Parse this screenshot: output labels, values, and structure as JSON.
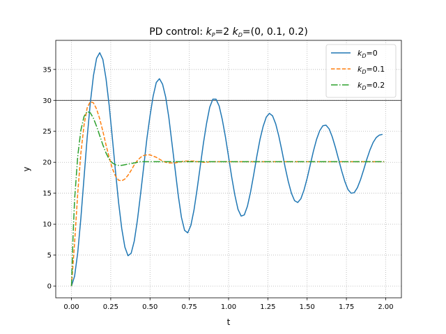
{
  "chart_data": {
    "type": "line",
    "title": {
      "prefix": "PD control: ",
      "kp_sym": "k",
      "kp_sub": "P",
      "kp_val": "=2  ",
      "kd_sym": "k",
      "kd_sub": "D",
      "kd_val": "=(0, 0.1, 0.2)"
    },
    "xlabel": "t",
    "ylabel": "y",
    "xlim": [
      -0.1,
      2.1
    ],
    "ylim": [
      -1.9,
      39.7
    ],
    "xticks": [
      "0.00",
      "0.25",
      "0.50",
      "0.75",
      "1.00",
      "1.25",
      "1.50",
      "1.75",
      "2.00"
    ],
    "xtick_values": [
      0,
      0.25,
      0.5,
      0.75,
      1.0,
      1.25,
      1.5,
      1.75,
      2.0
    ],
    "yticks": [
      "0",
      "5",
      "10",
      "15",
      "20",
      "25",
      "30",
      "35"
    ],
    "ytick_values": [
      0,
      5,
      10,
      15,
      20,
      25,
      30,
      35
    ],
    "grid": true,
    "legend_position": "top-right",
    "reference_line": {
      "y": 30,
      "color": "#000000"
    },
    "series": [
      {
        "name_sym": "k",
        "name_sub": "D",
        "name_val": "=0",
        "color": "#1f77b4",
        "style": "solid",
        "x": [
          0,
          0.02,
          0.04,
          0.06,
          0.08,
          0.1,
          0.12,
          0.14,
          0.16,
          0.18,
          0.2,
          0.22,
          0.24,
          0.26,
          0.28,
          0.3,
          0.32,
          0.34,
          0.36,
          0.38,
          0.4,
          0.42,
          0.44,
          0.46,
          0.48,
          0.5,
          0.52,
          0.54,
          0.56,
          0.58,
          0.6,
          0.62,
          0.64,
          0.66,
          0.68,
          0.7,
          0.72,
          0.74,
          0.76,
          0.78,
          0.8,
          0.82,
          0.84,
          0.86,
          0.88,
          0.9,
          0.92,
          0.94,
          0.96,
          0.98,
          1.0,
          1.02,
          1.04,
          1.06,
          1.08,
          1.1,
          1.12,
          1.14,
          1.16,
          1.18,
          1.2,
          1.22,
          1.24,
          1.26,
          1.28,
          1.3,
          1.32,
          1.34,
          1.36,
          1.38,
          1.4,
          1.42,
          1.44,
          1.46,
          1.48,
          1.5,
          1.52,
          1.54,
          1.56,
          1.58,
          1.6,
          1.62,
          1.64,
          1.66,
          1.68,
          1.7,
          1.72,
          1.74,
          1.76,
          1.78,
          1.8,
          1.82,
          1.84,
          1.86,
          1.88,
          1.9,
          1.92,
          1.94,
          1.96,
          1.98
        ],
        "y": [
          0.0,
          1.6,
          5.4,
          11.0,
          17.5,
          24.0,
          29.6,
          34.0,
          36.8,
          37.7,
          36.6,
          33.5,
          29.2,
          24.0,
          18.6,
          13.5,
          9.3,
          6.3,
          4.9,
          5.3,
          7.3,
          10.7,
          14.9,
          19.3,
          23.8,
          27.5,
          30.7,
          32.9,
          33.5,
          32.6,
          30.5,
          27.2,
          23.0,
          18.8,
          14.6,
          11.1,
          9.0,
          8.6,
          9.8,
          12.3,
          15.7,
          19.4,
          23.1,
          26.3,
          28.9,
          30.2,
          30.2,
          29.1,
          26.9,
          24.1,
          20.9,
          17.6,
          14.7,
          12.4,
          11.3,
          11.5,
          12.9,
          15.2,
          18.0,
          21.0,
          23.7,
          25.8,
          27.3,
          27.9,
          27.5,
          26.2,
          24.2,
          21.8,
          19.2,
          16.9,
          15.0,
          13.8,
          13.5,
          14.1,
          15.5,
          17.4,
          19.6,
          21.8,
          23.7,
          25.1,
          25.9,
          26.0,
          25.4,
          24.1,
          22.4,
          20.5,
          18.6,
          16.9,
          15.6,
          15.0,
          15.1,
          15.9,
          17.2,
          18.8,
          20.5,
          22.0,
          23.2,
          24.0,
          24.4,
          24.5
        ]
      },
      {
        "name_sym": "k",
        "name_sub": "D",
        "name_val": "=0.1",
        "color": "#ff7f0e",
        "style": "dashed",
        "x": [
          0,
          0.02,
          0.04,
          0.06,
          0.08,
          0.1,
          0.12,
          0.14,
          0.16,
          0.18,
          0.2,
          0.22,
          0.24,
          0.26,
          0.28,
          0.3,
          0.32,
          0.34,
          0.36,
          0.38,
          0.4,
          0.42,
          0.44,
          0.46,
          0.48,
          0.5,
          0.52,
          0.54,
          0.56,
          0.58,
          0.6,
          0.62,
          0.64,
          0.66,
          0.68,
          0.7,
          0.72,
          0.74,
          0.76,
          0.78,
          0.8,
          0.82,
          0.84,
          0.86,
          0.88,
          0.9,
          0.95,
          1.0,
          1.1,
          1.2,
          1.4,
          1.6,
          1.8,
          1.99
        ],
        "y": [
          0.0,
          7.0,
          15.0,
          21.5,
          26.0,
          28.8,
          29.8,
          29.6,
          28.6,
          27.0,
          25.0,
          22.8,
          20.8,
          19.0,
          17.8,
          17.1,
          17.0,
          17.3,
          17.9,
          18.7,
          19.6,
          20.3,
          20.8,
          21.1,
          21.2,
          21.2,
          21.0,
          20.8,
          20.5,
          20.2,
          20.0,
          19.9,
          19.9,
          19.9,
          20.0,
          20.1,
          20.2,
          20.2,
          20.2,
          20.2,
          20.1,
          20.1,
          20.0,
          20.0,
          20.1,
          20.1,
          20.1,
          20.1,
          20.1,
          20.1,
          20.1,
          20.1,
          20.1,
          20.1
        ]
      },
      {
        "name_sym": "k",
        "name_sub": "D",
        "name_val": "=0.2",
        "color": "#2ca02c",
        "style": "dashdot",
        "x": [
          0,
          0.01,
          0.02,
          0.04,
          0.06,
          0.08,
          0.1,
          0.12,
          0.14,
          0.16,
          0.18,
          0.2,
          0.22,
          0.24,
          0.26,
          0.28,
          0.3,
          0.32,
          0.34,
          0.36,
          0.38,
          0.4,
          0.42,
          0.44,
          0.46,
          0.48,
          0.5,
          0.55,
          0.6,
          0.65,
          0.7,
          0.8,
          1.0,
          1.2,
          1.5,
          1.99
        ],
        "y": [
          0.0,
          8.0,
          14.0,
          21.0,
          25.2,
          27.4,
          28.2,
          28.0,
          27.1,
          25.8,
          24.3,
          22.8,
          21.5,
          20.5,
          19.9,
          19.6,
          19.5,
          19.5,
          19.6,
          19.7,
          19.8,
          19.9,
          20.0,
          20.1,
          20.1,
          20.1,
          20.1,
          20.1,
          20.1,
          20.1,
          20.1,
          20.1,
          20.1,
          20.1,
          20.1,
          20.1
        ]
      }
    ]
  }
}
